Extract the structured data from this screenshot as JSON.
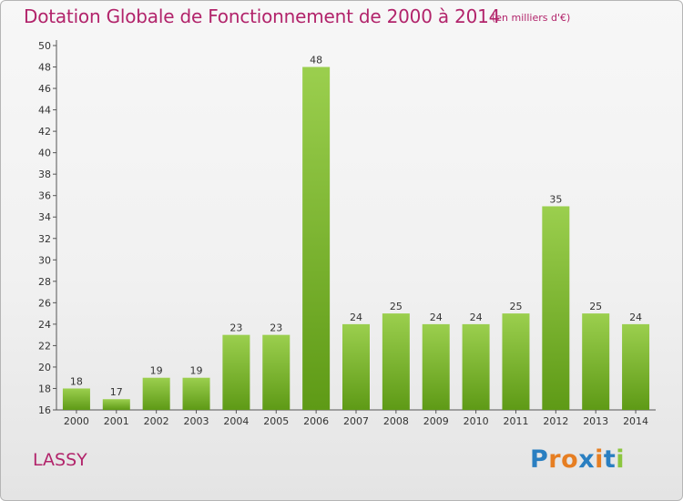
{
  "header": {
    "title": "Dotation Globale de Fonctionnement de 2000 à 2014",
    "subtitle": "(en milliers d'€)"
  },
  "footer": {
    "commune": "LASSY",
    "logo_text": "Proxiti"
  },
  "colors": {
    "title": "#b2246b",
    "bar_light": "#9bcf4e",
    "bar_dark": "#5e9a16",
    "grid": "#d9d9d9",
    "logo_letters": [
      "#2a7fc1",
      "#e67e22",
      "#e67e22",
      "#2a7fc1",
      "#e67e22",
      "#2a7fc1",
      "#8cc63f"
    ]
  },
  "chart_data": {
    "type": "bar",
    "categories": [
      "2000",
      "2001",
      "2002",
      "2003",
      "2004",
      "2005",
      "2006",
      "2007",
      "2008",
      "2009",
      "2010",
      "2011",
      "2012",
      "2013",
      "2014"
    ],
    "values": [
      18,
      17,
      19,
      19,
      23,
      23,
      48,
      24,
      25,
      24,
      24,
      25,
      35,
      25,
      24
    ],
    "title": "Dotation Globale de Fonctionnement de 2000 à 2014",
    "subtitle": "(en milliers d'€)",
    "xlabel": "",
    "ylabel": "",
    "ylim": [
      16,
      50
    ],
    "yticks": [
      16,
      18,
      20,
      22,
      24,
      26,
      28,
      30,
      32,
      34,
      36,
      38,
      40,
      42,
      44,
      46,
      48,
      50
    ],
    "grid": false,
    "data_labels": true
  }
}
